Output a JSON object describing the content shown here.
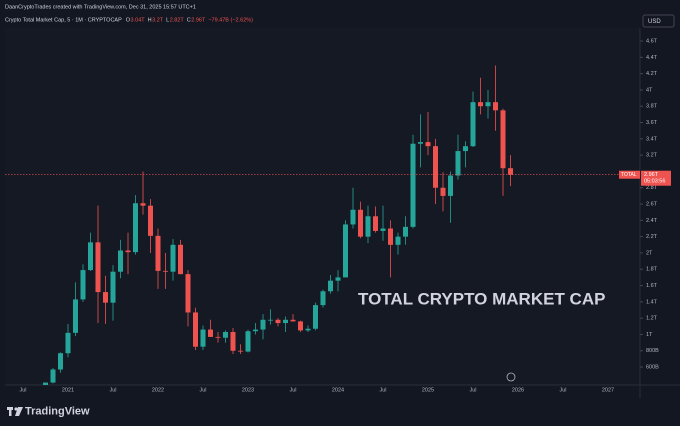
{
  "header": "DaanCryptoTrades created with TradingView.com, Dec 31, 2025 15:57 UTC+1",
  "brand": "TradingView",
  "currency": "USD",
  "chart_data": {
    "type": "candlestick",
    "legend": {
      "symbol": "Crypto Total Market Cap, 5 · 1M · CRYPTOCAP",
      "items": [
        {
          "key": "O",
          "text": "3.04T"
        },
        {
          "key": "H",
          "text": "3.2T"
        },
        {
          "key": "L",
          "text": "2.82T"
        },
        {
          "key": "C",
          "text": "2.96T"
        }
      ],
      "change": "−79.47B (−2.62%)"
    },
    "annotation": "TOTAL CRYPTO MARKET CAP",
    "symbol_tag": "TOTAL",
    "last_price_label": "2.96T",
    "countdown": "05:03:56",
    "up_color": "#26a69a",
    "down_color": "#ef5350",
    "grid": false,
    "categories": [
      null,
      null,
      "Jul",
      null,
      null,
      null,
      null,
      null,
      "2021",
      null,
      null,
      null,
      null,
      null,
      "Jul",
      null,
      null,
      null,
      null,
      null,
      "2022",
      null,
      null,
      null,
      null,
      null,
      "Jul",
      null,
      null,
      null,
      null,
      null,
      "2023",
      null,
      null,
      null,
      null,
      null,
      "Jul",
      null,
      null,
      null,
      null,
      null,
      "2024",
      null,
      null,
      null,
      null,
      null,
      "Jul",
      null,
      null,
      null,
      null,
      null,
      "2025",
      null,
      null,
      null,
      null,
      null,
      "Jul",
      null,
      null,
      null,
      null,
      null,
      "2026",
      null,
      null,
      null,
      null,
      null,
      "Jul",
      null,
      null,
      null,
      null,
      null,
      "2027",
      null,
      null,
      null
    ],
    "open": [
      null,
      null,
      null,
      null,
      null,
      0.34,
      0.41,
      0.57,
      0.77,
      1.02,
      1.43,
      1.79,
      2.13,
      1.52,
      1.39,
      1.77,
      2.03,
      2.01,
      2.61,
      2.58,
      2.21,
      1.78,
      1.77,
      2.1,
      1.74,
      1.27,
      0.85,
      1.06,
      0.97,
      0.96,
      1.03,
      0.8,
      0.79,
      1.04,
      1.06,
      1.18,
      1.18,
      1.14,
      1.18,
      1.16,
      1.05,
      1.07,
      1.36,
      1.53,
      1.66,
      1.7,
      2.35,
      2.53,
      2.2,
      2.45,
      2.27,
      2.3,
      2.1,
      2.2,
      2.32,
      3.34,
      3.36,
      3.31,
      2.8,
      2.7,
      2.95,
      3.25,
      3.31,
      3.85,
      3.8,
      3.85,
      3.75,
      3.04,
      null,
      null,
      null,
      null,
      null,
      null,
      null,
      null,
      null,
      null,
      null,
      null,
      null,
      null,
      null,
      null
    ],
    "high": [
      null,
      null,
      null,
      null,
      null,
      0.41,
      0.59,
      0.78,
      1.13,
      1.64,
      1.86,
      2.25,
      2.58,
      1.72,
      1.85,
      2.16,
      2.25,
      2.71,
      3.0,
      2.66,
      2.3,
      2.0,
      2.17,
      2.16,
      1.79,
      1.33,
      1.11,
      1.18,
      1.03,
      1.05,
      1.08,
      0.88,
      1.06,
      1.14,
      1.25,
      1.31,
      1.2,
      1.22,
      1.25,
      1.17,
      1.11,
      1.39,
      1.55,
      1.73,
      1.79,
      2.4,
      2.8,
      2.63,
      2.58,
      2.57,
      2.58,
      2.4,
      2.25,
      2.45,
      3.45,
      3.7,
      3.73,
      3.4,
      2.99,
      3.0,
      3.45,
      3.37,
      3.98,
      4.15,
      4.0,
      4.3,
      3.77,
      3.2,
      null,
      null,
      null,
      null,
      null,
      null,
      null,
      null,
      null,
      null,
      null,
      null,
      null,
      null,
      null,
      null
    ],
    "low": [
      null,
      null,
      null,
      null,
      null,
      0.32,
      0.4,
      0.53,
      0.72,
      0.98,
      1.4,
      1.78,
      1.14,
      1.13,
      1.17,
      1.69,
      1.74,
      1.98,
      2.47,
      2.0,
      1.56,
      1.56,
      1.66,
      1.74,
      1.1,
      0.81,
      0.81,
      0.97,
      0.9,
      0.9,
      0.76,
      0.76,
      0.78,
      1.0,
      0.94,
      1.12,
      1.1,
      1.03,
      1.16,
      1.03,
      1.03,
      1.05,
      1.33,
      1.5,
      1.53,
      1.7,
      2.3,
      2.18,
      2.12,
      2.25,
      2.15,
      1.7,
      1.98,
      2.1,
      2.3,
      3.05,
      3.2,
      2.6,
      2.51,
      2.37,
      2.9,
      3.05,
      3.3,
      3.7,
      3.65,
      3.5,
      2.7,
      2.82,
      null,
      null,
      null,
      null,
      null,
      null,
      null,
      null,
      null,
      null,
      null,
      null,
      null,
      null,
      null,
      null
    ],
    "close": [
      null,
      null,
      null,
      null,
      null,
      0.41,
      0.57,
      0.77,
      1.02,
      1.43,
      1.79,
      2.13,
      1.52,
      1.39,
      1.77,
      2.03,
      2.01,
      2.61,
      2.58,
      2.21,
      1.78,
      1.77,
      2.1,
      1.74,
      1.27,
      0.85,
      1.06,
      0.97,
      0.96,
      1.03,
      0.8,
      0.79,
      1.04,
      1.06,
      1.18,
      1.18,
      1.14,
      1.18,
      1.16,
      1.05,
      1.07,
      1.36,
      1.53,
      1.66,
      1.7,
      2.35,
      2.53,
      2.2,
      2.45,
      2.27,
      2.3,
      2.1,
      2.2,
      2.32,
      3.34,
      3.36,
      3.31,
      2.8,
      2.7,
      2.95,
      3.25,
      3.31,
      3.85,
      3.8,
      3.85,
      3.75,
      3.04,
      2.96,
      null,
      null,
      null,
      null,
      null,
      null,
      null,
      null,
      null,
      null,
      null,
      null,
      null,
      null,
      null,
      null
    ],
    "ylim": [
      0.38,
      4.76
    ],
    "yticks": [
      {
        "value": 0.6,
        "label": "600B"
      },
      {
        "value": 0.8,
        "label": "800B"
      },
      {
        "value": 1,
        "label": "1T"
      },
      {
        "value": 1.2,
        "label": "1.2T"
      },
      {
        "value": 1.4,
        "label": "1.4T"
      },
      {
        "value": 1.6,
        "label": "1.6T"
      },
      {
        "value": 1.8,
        "label": "1.8T"
      },
      {
        "value": 2,
        "label": "2T"
      },
      {
        "value": 2.2,
        "label": "2.2T"
      },
      {
        "value": 2.4,
        "label": "2.4T"
      },
      {
        "value": 2.6,
        "label": "2.6T"
      },
      {
        "value": 2.8,
        "label": "2.8T"
      },
      {
        "value": 3.2,
        "label": "3.2T"
      },
      {
        "value": 3.4,
        "label": "3.4T"
      },
      {
        "value": 3.6,
        "label": "3.6T"
      },
      {
        "value": 3.8,
        "label": "3.8T"
      },
      {
        "value": 4,
        "label": "4T"
      },
      {
        "value": 4.2,
        "label": "4.2T"
      },
      {
        "value": 4.4,
        "label": "4.4T"
      },
      {
        "value": 4.6,
        "label": "4.6T"
      }
    ]
  }
}
